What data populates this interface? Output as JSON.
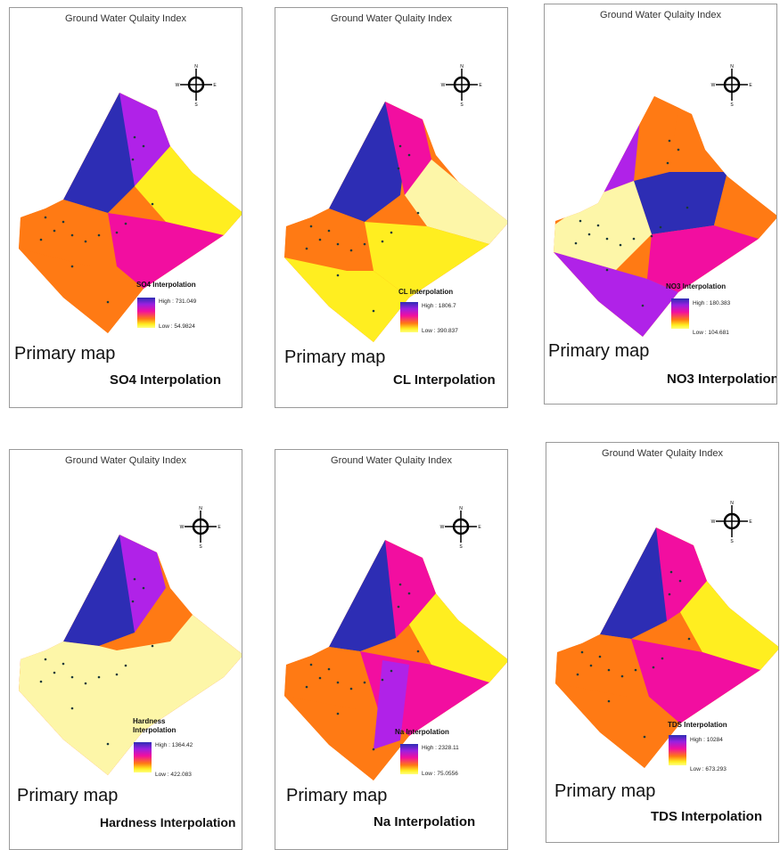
{
  "panels": [
    {
      "title": "Ground Water Qulaity Index",
      "legend_title": "SO4 Interpolation",
      "high": "High : 731.049",
      "low": "Low : 54.9824",
      "primary": "Primary map",
      "caption": "SO4 Interpolation",
      "scheme": "so4"
    },
    {
      "title": "Ground Water Qulaity Index",
      "legend_title": "CL  Interpolation",
      "high": "High : 1806.7",
      "low": "Low : 390.837",
      "primary": "Primary map",
      "caption": "CL  Interpolation",
      "scheme": "cl"
    },
    {
      "title": "Ground Water Qulaity Index",
      "legend_title": "NO3 Interpolation",
      "high": "High : 180.383",
      "low": "Low : 104.681",
      "primary": "Primary map",
      "caption": "NO3  Interpolation",
      "scheme": "no3"
    },
    {
      "title": "Ground Water Qulaity Index",
      "legend_title": "Hardness Interpolation",
      "high": "High : 1364.42",
      "low": "Low : 422.083",
      "primary": "Primary map",
      "caption": "Hardness  Interpolation",
      "scheme": "hard"
    },
    {
      "title": "Ground Water Qulaity Index",
      "legend_title": "Na  Interpolation",
      "high": "High : 2328.11",
      "low": "Low : 75.0556",
      "primary": "Primary map",
      "caption": "Na  Interpolation",
      "scheme": "na"
    },
    {
      "title": "Ground Water Qulaity Index",
      "legend_title": "TDS Interpolation",
      "high": "High : 10284",
      "low": "Low : 673.293",
      "primary": "Primary map",
      "caption": "TDS  Interpolation",
      "scheme": "tds"
    }
  ],
  "compass": {
    "n": "N",
    "s": "S",
    "e": "E",
    "w": "W"
  },
  "colors": {
    "high": "#2d2db4",
    "mid_high": "#b022e8",
    "mid": "#f20ea0",
    "mid_low": "#ff7a14",
    "low": "#ffee20",
    "lowest": "#fdf6a8"
  }
}
